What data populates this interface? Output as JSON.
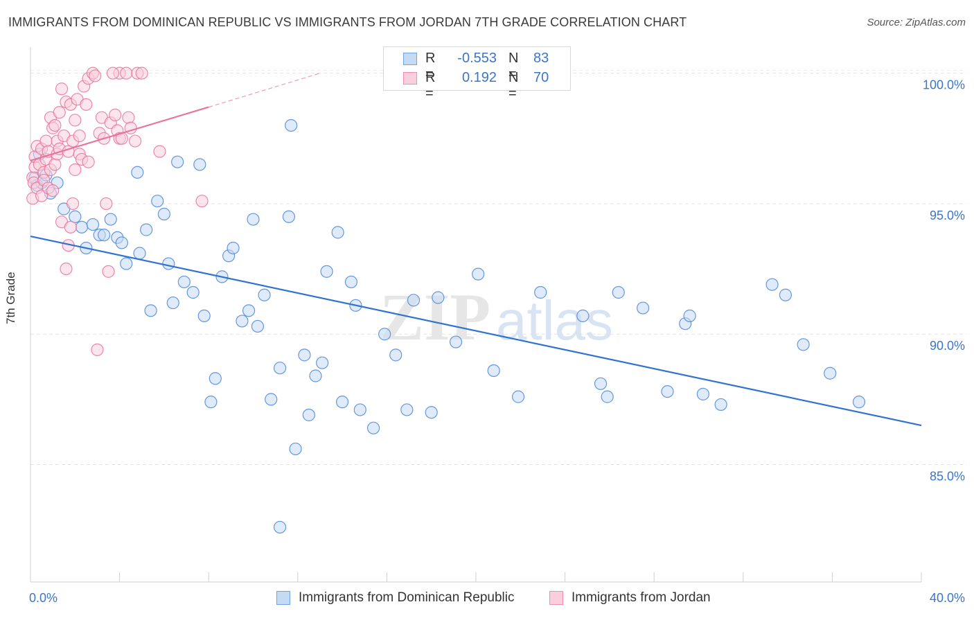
{
  "title": "IMMIGRANTS FROM DOMINICAN REPUBLIC VS IMMIGRANTS FROM JORDAN 7TH GRADE CORRELATION CHART",
  "source": "Source: ZipAtlas.com",
  "watermark": {
    "zip": "ZIP",
    "atlas": "atlas"
  },
  "legend": {
    "rows": [
      {
        "r_label": "R =",
        "r_value": "-0.553",
        "n_label": "N =",
        "n_value": "83",
        "color": "#6fa3e8",
        "fill": "#c5daf5"
      },
      {
        "r_label": "R =",
        "r_value": "0.192",
        "n_label": "N =",
        "n_value": "70",
        "color": "#ef8fb0",
        "fill": "#f9cfdd"
      }
    ]
  },
  "chart_data": {
    "type": "scatter",
    "title": "IMMIGRANTS FROM DOMINICAN REPUBLIC VS IMMIGRANTS FROM JORDAN 7TH GRADE CORRELATION CHART",
    "xlabel": "",
    "ylabel": "7th Grade",
    "xlim": [
      0,
      40
    ],
    "ylim": [
      80.5,
      101
    ],
    "x_tick_labels": [
      "0.0%",
      "40.0%"
    ],
    "y_ticks": [
      85,
      90,
      95,
      100
    ],
    "y_tick_labels": [
      "85.0%",
      "90.0%",
      "95.0%",
      "100.0%"
    ],
    "grid": true,
    "legend_position": "bottom-center",
    "series": [
      {
        "name": "Immigrants from Dominican Republic",
        "color": "#4a86d8",
        "fill": "#c5daf5",
        "trend": {
          "x": [
            0,
            40
          ],
          "y": [
            93.75,
            86.5
          ],
          "dashed_beyond": null
        },
        "points": [
          [
            0.2,
            96.0
          ],
          [
            0.3,
            95.7
          ],
          [
            0.4,
            96.9
          ],
          [
            0.5,
            95.8
          ],
          [
            0.7,
            96.1
          ],
          [
            0.9,
            95.4
          ],
          [
            1.2,
            95.8
          ],
          [
            1.5,
            94.8
          ],
          [
            2.0,
            94.5
          ],
          [
            2.3,
            94.1
          ],
          [
            2.5,
            93.3
          ],
          [
            2.8,
            94.2
          ],
          [
            3.1,
            93.8
          ],
          [
            3.3,
            93.8
          ],
          [
            3.6,
            94.4
          ],
          [
            3.9,
            93.7
          ],
          [
            4.1,
            93.5
          ],
          [
            4.3,
            92.7
          ],
          [
            4.8,
            96.2
          ],
          [
            4.9,
            93.1
          ],
          [
            5.2,
            94.0
          ],
          [
            5.4,
            90.9
          ],
          [
            5.7,
            95.1
          ],
          [
            6.0,
            94.6
          ],
          [
            6.2,
            92.7
          ],
          [
            6.4,
            91.2
          ],
          [
            6.6,
            96.6
          ],
          [
            6.9,
            92.0
          ],
          [
            7.3,
            91.6
          ],
          [
            7.6,
            96.5
          ],
          [
            7.8,
            90.7
          ],
          [
            8.1,
            87.4
          ],
          [
            8.3,
            88.3
          ],
          [
            8.6,
            92.2
          ],
          [
            8.9,
            93.0
          ],
          [
            9.1,
            93.3
          ],
          [
            9.5,
            90.5
          ],
          [
            9.8,
            90.9
          ],
          [
            10.0,
            94.4
          ],
          [
            10.2,
            90.3
          ],
          [
            10.5,
            91.5
          ],
          [
            10.8,
            87.5
          ],
          [
            11.2,
            88.7
          ],
          [
            11.6,
            94.5
          ],
          [
            11.7,
            98.0
          ],
          [
            11.9,
            85.6
          ],
          [
            12.3,
            89.2
          ],
          [
            12.5,
            86.9
          ],
          [
            12.8,
            88.4
          ],
          [
            13.1,
            88.9
          ],
          [
            13.3,
            92.4
          ],
          [
            13.8,
            93.9
          ],
          [
            14.0,
            87.4
          ],
          [
            14.4,
            92.0
          ],
          [
            14.6,
            91.1
          ],
          [
            14.8,
            87.1
          ],
          [
            15.4,
            86.4
          ],
          [
            15.9,
            90.0
          ],
          [
            16.4,
            89.2
          ],
          [
            16.9,
            87.1
          ],
          [
            17.2,
            91.3
          ],
          [
            18.0,
            87.0
          ],
          [
            18.3,
            91.4
          ],
          [
            19.1,
            89.7
          ],
          [
            20.1,
            92.3
          ],
          [
            20.8,
            88.6
          ],
          [
            21.9,
            87.6
          ],
          [
            22.9,
            91.6
          ],
          [
            24.8,
            90.7
          ],
          [
            25.6,
            88.1
          ],
          [
            25.9,
            87.6
          ],
          [
            26.4,
            91.6
          ],
          [
            27.5,
            91.0
          ],
          [
            28.6,
            87.8
          ],
          [
            29.4,
            90.4
          ],
          [
            29.6,
            90.7
          ],
          [
            30.2,
            87.7
          ],
          [
            31.0,
            87.3
          ],
          [
            33.3,
            91.9
          ],
          [
            33.9,
            91.5
          ],
          [
            34.7,
            89.6
          ],
          [
            35.9,
            88.5
          ],
          [
            37.2,
            87.4
          ],
          [
            11.2,
            82.6
          ]
        ]
      },
      {
        "name": "Immigrants from Jordan",
        "color": "#e8749b",
        "fill": "#f9cfdd",
        "trend": {
          "x": [
            0,
            8
          ],
          "y": [
            96.65,
            98.7
          ],
          "dashed_to": [
            13,
            100
          ]
        },
        "points": [
          [
            0.1,
            95.2
          ],
          [
            0.1,
            96.0
          ],
          [
            0.15,
            95.8
          ],
          [
            0.2,
            96.4
          ],
          [
            0.2,
            96.8
          ],
          [
            0.3,
            97.2
          ],
          [
            0.3,
            95.6
          ],
          [
            0.4,
            96.5
          ],
          [
            0.5,
            97.1
          ],
          [
            0.5,
            95.3
          ],
          [
            0.6,
            96.2
          ],
          [
            0.6,
            95.9
          ],
          [
            0.7,
            97.4
          ],
          [
            0.7,
            96.7
          ],
          [
            0.8,
            95.6
          ],
          [
            0.8,
            97.0
          ],
          [
            0.9,
            98.3
          ],
          [
            0.9,
            96.3
          ],
          [
            1.0,
            97.9
          ],
          [
            1.0,
            95.5
          ],
          [
            1.1,
            98.0
          ],
          [
            1.1,
            96.5
          ],
          [
            1.2,
            97.4
          ],
          [
            1.2,
            96.9
          ],
          [
            1.3,
            98.5
          ],
          [
            1.3,
            97.1
          ],
          [
            1.4,
            99.4
          ],
          [
            1.4,
            94.3
          ],
          [
            1.5,
            97.6
          ],
          [
            1.6,
            98.9
          ],
          [
            1.6,
            92.5
          ],
          [
            1.7,
            93.4
          ],
          [
            1.7,
            97.0
          ],
          [
            1.8,
            98.8
          ],
          [
            1.8,
            94.1
          ],
          [
            1.9,
            95.0
          ],
          [
            1.9,
            97.4
          ],
          [
            2.0,
            96.3
          ],
          [
            2.0,
            98.2
          ],
          [
            2.1,
            99.0
          ],
          [
            2.2,
            96.9
          ],
          [
            2.2,
            97.6
          ],
          [
            2.3,
            96.7
          ],
          [
            2.4,
            99.5
          ],
          [
            2.5,
            98.8
          ],
          [
            2.6,
            99.8
          ],
          [
            2.6,
            96.6
          ],
          [
            2.8,
            100.0
          ],
          [
            2.9,
            99.9
          ],
          [
            3.0,
            89.4
          ],
          [
            3.1,
            97.7
          ],
          [
            3.2,
            98.3
          ],
          [
            3.3,
            97.5
          ],
          [
            3.4,
            95.0
          ],
          [
            3.5,
            92.4
          ],
          [
            3.6,
            98.1
          ],
          [
            3.8,
            98.4
          ],
          [
            3.9,
            97.8
          ],
          [
            4.0,
            97.5
          ],
          [
            4.0,
            100.0
          ],
          [
            4.1,
            97.5
          ],
          [
            4.3,
            100.0
          ],
          [
            4.4,
            98.3
          ],
          [
            4.5,
            97.9
          ],
          [
            4.7,
            97.4
          ],
          [
            4.8,
            100.0
          ],
          [
            5.0,
            100.0
          ],
          [
            5.8,
            97.0
          ],
          [
            7.7,
            95.1
          ],
          [
            3.7,
            100.0
          ]
        ]
      }
    ]
  },
  "bottom_legend": [
    {
      "label": "Immigrants from Dominican Republic"
    },
    {
      "label": "Immigrants from Jordan"
    }
  ]
}
